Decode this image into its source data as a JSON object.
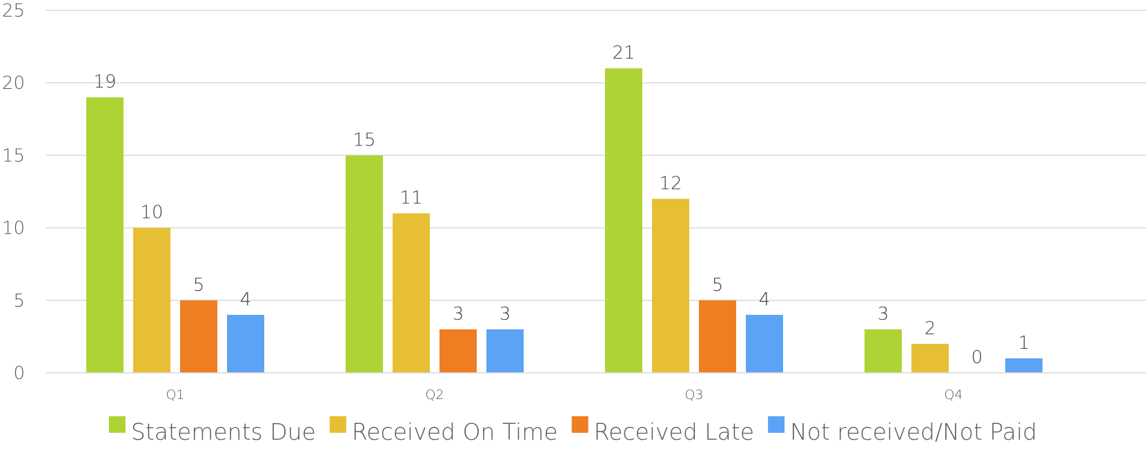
{
  "chart_data": {
    "type": "bar",
    "title": "",
    "xlabel": "",
    "ylabel": "",
    "categories": [
      "Q1",
      "Q2",
      "Q3",
      "Q4"
    ],
    "ylim": [
      0,
      25
    ],
    "yticks": [
      0,
      5,
      10,
      15,
      20,
      25
    ],
    "grid": true,
    "legend_position": "bottom",
    "series": [
      {
        "name": "Statements Due",
        "color": "#add434",
        "values": [
          19,
          15,
          21,
          3
        ]
      },
      {
        "name": "Received On Time",
        "color": "#e6bf34",
        "values": [
          10,
          11,
          12,
          2
        ]
      },
      {
        "name": "Received Late",
        "color": "#ef7d22",
        "values": [
          5,
          3,
          5,
          0
        ]
      },
      {
        "name": "Not received/Not Paid",
        "color": "#5ba3f5",
        "values": [
          4,
          3,
          4,
          1
        ]
      }
    ]
  }
}
